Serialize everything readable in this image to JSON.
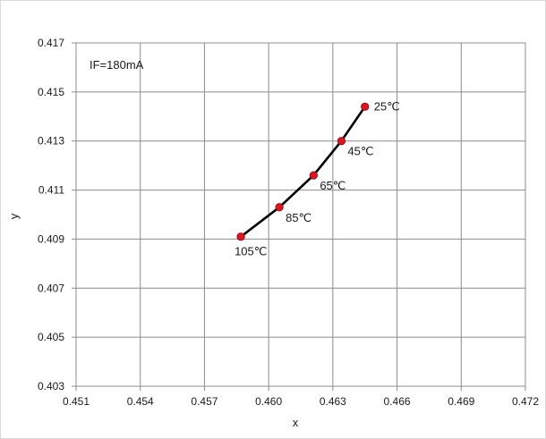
{
  "chart_data": {
    "type": "line",
    "title": "",
    "xlabel": "x",
    "ylabel": "y",
    "xlim": [
      0.451,
      0.472
    ],
    "ylim": [
      0.403,
      0.417
    ],
    "x_ticks": [
      "0.451",
      "0.454",
      "0.457",
      "0.460",
      "0.463",
      "0.466",
      "0.469",
      "0.472"
    ],
    "y_ticks": [
      "0.403",
      "0.405",
      "0.407",
      "0.409",
      "0.411",
      "0.413",
      "0.415",
      "0.417"
    ],
    "grid": true,
    "annotation": "IF=180mA",
    "series": [
      {
        "points": [
          {
            "x": 0.4645,
            "y": 0.4144,
            "label": "25℃"
          },
          {
            "x": 0.4634,
            "y": 0.413,
            "label": "45℃"
          },
          {
            "x": 0.4621,
            "y": 0.4116,
            "label": "65℃"
          },
          {
            "x": 0.4605,
            "y": 0.4103,
            "label": "85℃"
          },
          {
            "x": 0.4587,
            "y": 0.4091,
            "label": "105℃"
          }
        ],
        "line_color": "#000000",
        "marker_color": "#e0141e"
      }
    ]
  }
}
